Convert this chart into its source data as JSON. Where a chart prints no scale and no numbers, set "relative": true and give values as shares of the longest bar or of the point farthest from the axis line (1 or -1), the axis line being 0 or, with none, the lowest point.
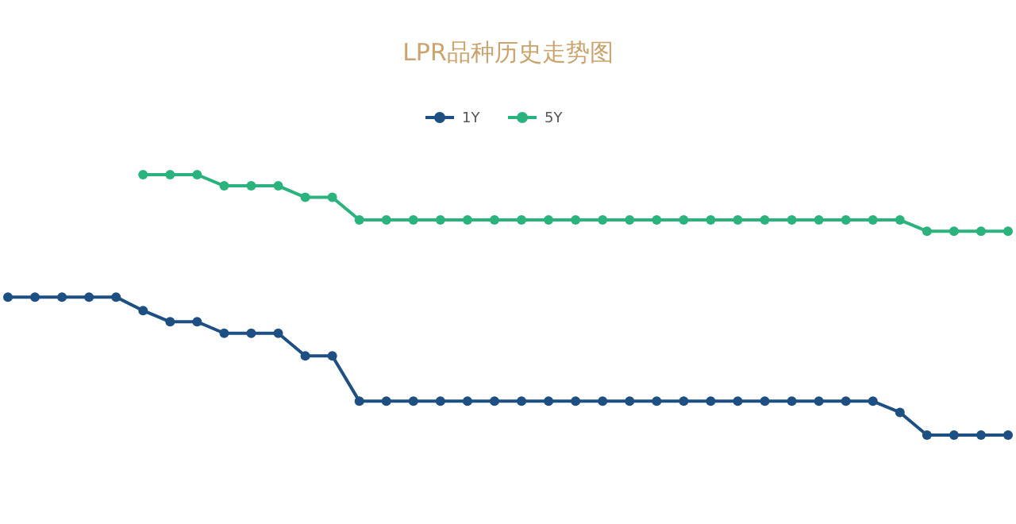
{
  "chart_data": {
    "type": "line",
    "title": "LPR品种历史走势图",
    "relative": true,
    "categories": [
      null,
      null,
      null,
      null,
      null,
      null,
      null,
      null,
      null,
      null,
      null,
      null,
      null,
      null,
      null,
      null,
      null,
      null,
      null,
      null,
      null,
      null,
      null,
      null,
      null,
      null,
      null,
      null,
      null,
      null,
      null,
      null,
      null,
      null,
      null,
      null,
      null,
      null
    ],
    "legend": "top",
    "marker": "circle",
    "line_style": "solid",
    "series": [
      {
        "name": "1Y",
        "color": "#1d4f82",
        "values": [
          0.53,
          0.53,
          0.53,
          0.53,
          0.53,
          0.478,
          0.435,
          0.435,
          0.391,
          0.391,
          0.391,
          0.304,
          0.304,
          0.13,
          0.13,
          0.13,
          0.13,
          0.13,
          0.13,
          0.13,
          0.13,
          0.13,
          0.13,
          0.13,
          0.13,
          0.13,
          0.13,
          0.13,
          0.13,
          0.13,
          0.13,
          0.13,
          0.13,
          0.087,
          0,
          0,
          0,
          0
        ]
      },
      {
        "name": "5Y",
        "color": "#2bb37e",
        "values": [
          null,
          null,
          null,
          null,
          null,
          1,
          1,
          1,
          0.957,
          0.957,
          0.957,
          0.913,
          0.913,
          0.826,
          0.826,
          0.826,
          0.826,
          0.826,
          0.826,
          0.826,
          0.826,
          0.826,
          0.826,
          0.826,
          0.826,
          0.826,
          0.826,
          0.826,
          0.826,
          0.826,
          0.826,
          0.826,
          0.826,
          0.826,
          0.783,
          0.783,
          0.783,
          0.783
        ]
      }
    ]
  }
}
